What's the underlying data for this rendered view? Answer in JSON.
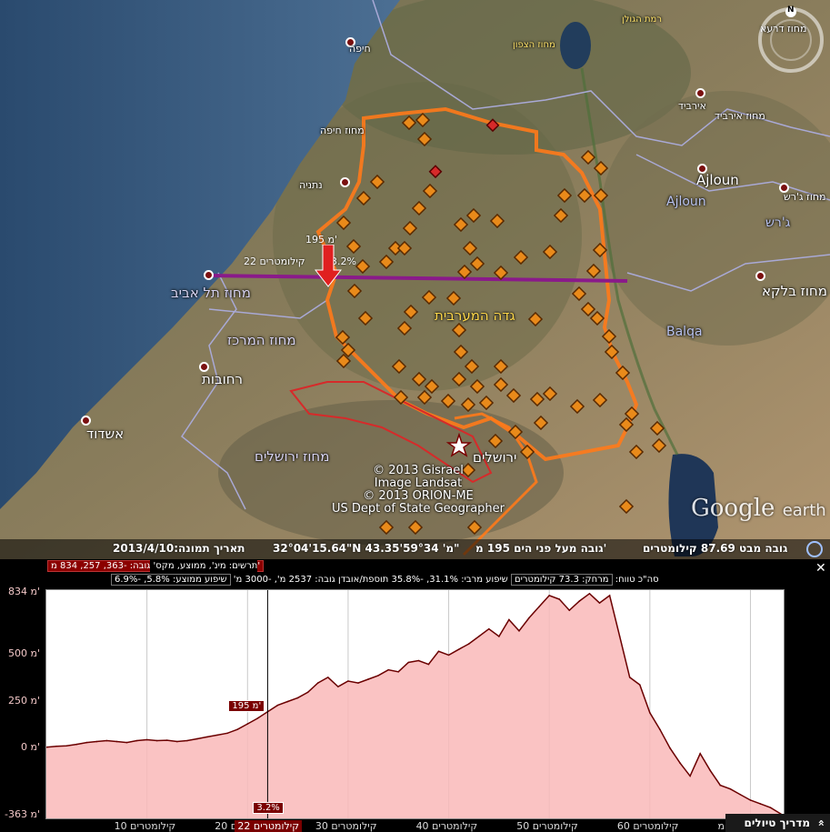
{
  "map": {
    "labels": {
      "haifa": "חיפה",
      "haifa_district": "מחוז חיפה",
      "netanya": "נתניה",
      "tel_aviv_district": "מחוז תל אביב",
      "center_district": "מחוז המרכז",
      "rehovot": "רחובות",
      "ashdod": "אשדוד",
      "jerusalem_district": "מחוז ירושלים",
      "jerusalem": "ירושלים",
      "west_bank": "גדה המערבית",
      "north_district": "מחוז הצפון",
      "golan": "רמת הגולן",
      "irbid": "אירביד",
      "irbid_district": "מחוז אירביד",
      "daraa_district": "מחוז דרעא",
      "ajloun": "Ajloun",
      "ajloun2": "Ajloun",
      "jerash_district": "מחוז ג'רש",
      "jerash": "ג'רש",
      "balqa_district": "מחוז בלקא",
      "balqa": "Balqa"
    },
    "copyright": [
      "© 2013 Gisrael",
      "Image Landsat",
      "© 2013 ORION-ME",
      "US Dept of State Geographer"
    ],
    "google_logo": "Google",
    "google_logo_suffix": "earth",
    "compass_north": "N",
    "marker": {
      "elevation": "195 מ'",
      "distance": "22 קילומטרים",
      "slope": "3.2%"
    }
  },
  "statusbar": {
    "image_date": "תאריך תמונה:2013/4/10",
    "coordinates": "32°04'15.64\"N מ' 59°34'43.35\"",
    "elevation": "גובה מעל פני הים 195 מ'",
    "eye_altitude": "גובה מבט 87.69 קילומטרים"
  },
  "profile": {
    "close_label": "✕",
    "row1_label": "תרשים: מינ', ממוצע, מקס'",
    "row1_highlight": "גובה: -363, 257, 834 מ'",
    "row2_slope_avg": "שיפוע ממוצע: 5.8%, -6.9%",
    "row2_rest": "שיפוע מרבי: 31.1%, -35.8%  תוספת/אובדן גובה: 2537 מ', -3000 מ'",
    "row2_distance_box": "מרחק: 73.3 קילומטרים",
    "row2_tail": "סה\"כ טווח:",
    "tour_guide_label": "מדריך טיולים",
    "tour_guide_icon": "»",
    "cursor_elevation_tag": "195 מ'",
    "cursor_slope_tag": "3.2%",
    "cursor_distance_tag": "22 קילומטרים"
  },
  "colors": {
    "accent_dark_red": "#7a0000",
    "profile_fill": "#f9b9b9",
    "profile_line": "#6b0000",
    "route_purple": "#8a1a8a",
    "border_orange": "#ff7a1a"
  },
  "chart_data": {
    "type": "area",
    "title": "",
    "xlabel": "",
    "ylabel": "",
    "xlim": [
      0,
      73.3
    ],
    "ylim": [
      -363,
      834
    ],
    "y_ticks": [
      {
        "value": 834,
        "label": "834 מ'"
      },
      {
        "value": 500,
        "label": "500 מ'"
      },
      {
        "value": 250,
        "label": "250 מ'"
      },
      {
        "value": 0,
        "label": "0 מ'"
      },
      {
        "value": -363,
        "label": "-363 מ'"
      }
    ],
    "x_ticks": [
      {
        "value": 10,
        "label": "10 קילומטרים"
      },
      {
        "value": 20,
        "label": "20 קילומטרים"
      },
      {
        "value": 30,
        "label": "30 קילומטרים"
      },
      {
        "value": 40,
        "label": "40 קילומטרים"
      },
      {
        "value": 50,
        "label": "50 קילומטרים"
      },
      {
        "value": 60,
        "label": "60 קילומטרים"
      },
      {
        "value": 70,
        "label": "מ"
      }
    ],
    "cursor": {
      "x": 22,
      "y": 195
    },
    "series": [
      {
        "x": [
          0,
          1,
          2,
          3,
          4,
          5,
          6,
          7,
          8,
          9,
          10,
          11,
          12,
          13,
          14,
          15,
          16,
          17,
          18,
          19,
          20,
          21,
          22,
          23,
          24,
          25,
          26,
          27,
          28,
          29,
          30,
          31,
          32,
          33,
          34,
          35,
          36,
          37,
          38,
          39,
          40,
          41,
          42,
          43,
          44,
          45,
          46,
          47,
          48,
          49,
          50,
          51,
          52,
          53,
          54,
          55,
          56,
          57,
          58,
          59,
          60,
          61,
          62,
          63,
          64,
          65,
          66,
          67,
          68,
          69,
          70,
          71,
          72,
          73.3
        ],
        "y": [
          5,
          10,
          12,
          20,
          30,
          35,
          40,
          35,
          30,
          40,
          45,
          40,
          42,
          35,
          40,
          50,
          60,
          70,
          80,
          100,
          130,
          160,
          195,
          230,
          250,
          270,
          300,
          350,
          380,
          330,
          360,
          350,
          370,
          390,
          420,
          410,
          460,
          470,
          450,
          520,
          500,
          530,
          560,
          600,
          640,
          600,
          690,
          630,
          700,
          760,
          820,
          800,
          740,
          790,
          830,
          780,
          820,
          600,
          380,
          340,
          190,
          100,
          0,
          -80,
          -150,
          -30,
          -120,
          -200,
          -220,
          -250,
          -280,
          -300,
          -320,
          -363
        ]
      }
    ]
  }
}
